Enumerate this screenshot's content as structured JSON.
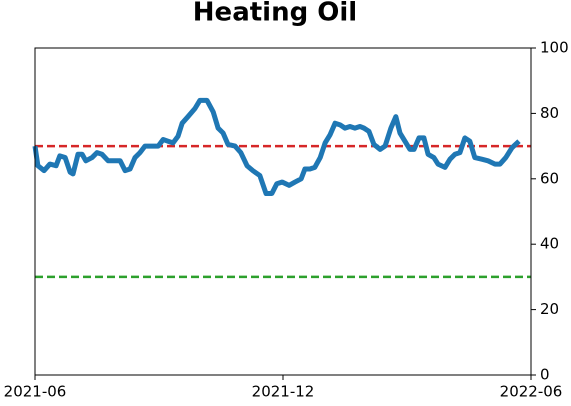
{
  "chart_data": {
    "type": "line",
    "title": "Heating Oil",
    "x": [
      0,
      0.07,
      0.22,
      0.36,
      0.51,
      0.6,
      0.73,
      0.85,
      0.92,
      1.04,
      1.14,
      1.23,
      1.38,
      1.5,
      1.62,
      1.77,
      1.91,
      2.06,
      2.18,
      2.3,
      2.42,
      2.54,
      2.66,
      2.83,
      2.98,
      3.1,
      3.22,
      3.34,
      3.46,
      3.56,
      3.7,
      3.87,
      3.99,
      4.16,
      4.31,
      4.43,
      4.55,
      4.67,
      4.84,
      4.98,
      5.13,
      5.27,
      5.44,
      5.59,
      5.73,
      5.85,
      5.98,
      6.15,
      6.29,
      6.44,
      6.53,
      6.65,
      6.77,
      6.9,
      7.02,
      7.14,
      7.26,
      7.38,
      7.5,
      7.62,
      7.74,
      7.86,
      7.96,
      8.08,
      8.2,
      8.35,
      8.47,
      8.61,
      8.73,
      8.83,
      8.95,
      9.07,
      9.17,
      9.29,
      9.41,
      9.51,
      9.65,
      9.75,
      9.92,
      10.04,
      10.16,
      10.28,
      10.4,
      10.52,
      10.64,
      10.81,
      10.96,
      11.13,
      11.25,
      11.39,
      11.54,
      11.71
    ],
    "series": [
      {
        "color": "#1f77b4",
        "values": [
          70,
          64,
          62.5,
          64.5,
          64,
          67,
          66.5,
          62,
          61.5,
          67.5,
          67.5,
          65.5,
          66.5,
          68,
          67.5,
          65.5,
          65.5,
          65.5,
          62.5,
          63,
          66.5,
          68,
          70,
          70,
          70,
          72,
          71.5,
          71,
          73,
          77,
          79,
          81.5,
          84,
          84,
          80.5,
          75.5,
          74,
          70.5,
          70,
          68,
          64,
          62.5,
          61,
          55.5,
          55.5,
          58.5,
          59,
          58,
          59,
          60,
          63,
          63,
          63.5,
          66.5,
          71,
          73.5,
          77,
          76.5,
          75.5,
          76,
          75.5,
          76,
          75.5,
          74.5,
          70.5,
          69,
          70,
          75.5,
          79,
          74,
          71.5,
          69,
          69,
          72.5,
          72.5,
          67.5,
          66.5,
          64.5,
          63.5,
          66,
          67.5,
          68,
          72.5,
          71.5,
          66.5,
          66,
          65.5,
          64.5,
          64.5,
          66.5,
          69.5,
          71.5
        ]
      }
    ],
    "hlines": [
      {
        "value": 70,
        "color": "#d62728"
      },
      {
        "value": 30,
        "color": "#2ca02c"
      }
    ],
    "xlim": [
      0,
      12
    ],
    "xticks": [
      {
        "value": 0,
        "label": "2021-06"
      },
      {
        "value": 6,
        "label": "2021-12"
      },
      {
        "value": 12,
        "label": "2022-06"
      }
    ],
    "ylim": [
      0,
      100
    ],
    "yticks": [
      0,
      20,
      40,
      60,
      80,
      100
    ],
    "yaxis_side": "right"
  }
}
